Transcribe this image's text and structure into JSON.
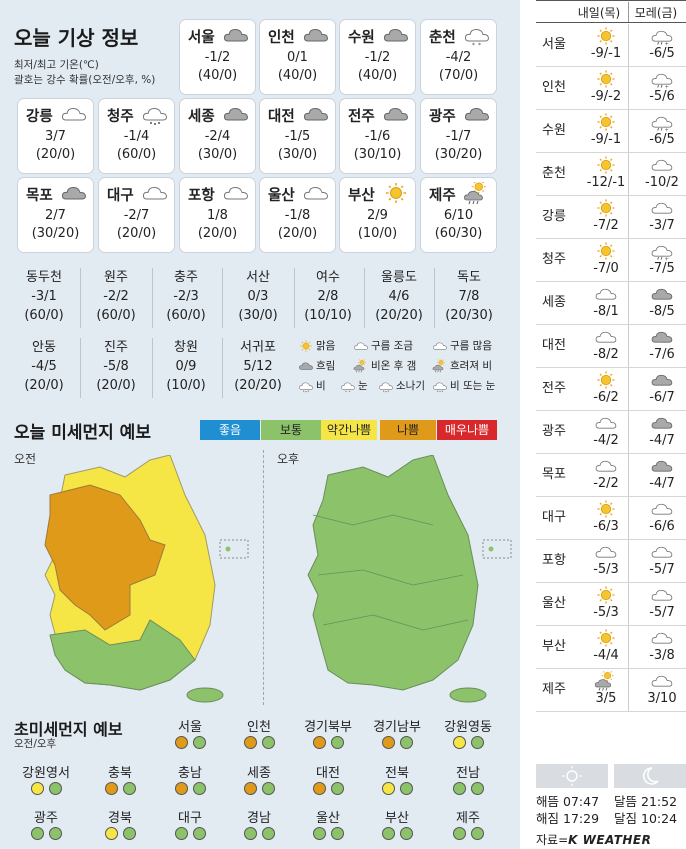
{
  "header": {
    "title": "오늘 기상 정보",
    "note1": "최저/최고 기온(℃)",
    "note2": "괄호는 강수 확률(오전/오후, %)"
  },
  "cards": [
    {
      "name": "서울",
      "temp": "-1/2",
      "prob": "(40/0)",
      "icon": "cloudy"
    },
    {
      "name": "인천",
      "temp": "0/1",
      "prob": "(40/0)",
      "icon": "cloudy"
    },
    {
      "name": "수원",
      "temp": "-1/2",
      "prob": "(40/0)",
      "icon": "cloudy"
    },
    {
      "name": "춘천",
      "temp": "-4/2",
      "prob": "(70/0)",
      "icon": "snow"
    },
    {
      "name": "강릉",
      "temp": "3/7",
      "prob": "(20/0)",
      "icon": "partly"
    },
    {
      "name": "청주",
      "temp": "-1/4",
      "prob": "(60/0)",
      "icon": "rain"
    },
    {
      "name": "세종",
      "temp": "-2/4",
      "prob": "(30/0)",
      "icon": "cloudy"
    },
    {
      "name": "대전",
      "temp": "-1/5",
      "prob": "(30/0)",
      "icon": "cloudy"
    },
    {
      "name": "전주",
      "temp": "-1/6",
      "prob": "(30/10)",
      "icon": "cloudy"
    },
    {
      "name": "광주",
      "temp": "-1/7",
      "prob": "(30/20)",
      "icon": "cloudy"
    },
    {
      "name": "목포",
      "temp": "2/7",
      "prob": "(30/20)",
      "icon": "cloudy"
    },
    {
      "name": "대구",
      "temp": "-2/7",
      "prob": "(20/0)",
      "icon": "partly"
    },
    {
      "name": "포항",
      "temp": "1/8",
      "prob": "(20/0)",
      "icon": "partly"
    },
    {
      "name": "울산",
      "temp": "-1/8",
      "prob": "(20/0)",
      "icon": "partly"
    },
    {
      "name": "부산",
      "temp": "2/9",
      "prob": "(10/0)",
      "icon": "sun"
    },
    {
      "name": "제주",
      "temp": "6/10",
      "prob": "(60/30)",
      "icon": "sunrain"
    }
  ],
  "small_cities": [
    {
      "name": "동두천",
      "temp": "-3/1",
      "prob": "(60/0)"
    },
    {
      "name": "원주",
      "temp": "-2/2",
      "prob": "(60/0)"
    },
    {
      "name": "충주",
      "temp": "-2/3",
      "prob": "(60/0)"
    },
    {
      "name": "서산",
      "temp": "0/3",
      "prob": "(30/0)"
    },
    {
      "name": "여수",
      "temp": "2/8",
      "prob": "(10/10)"
    },
    {
      "name": "울릉도",
      "temp": "4/6",
      "prob": "(20/20)"
    },
    {
      "name": "독도",
      "temp": "7/8",
      "prob": "(20/30)"
    },
    {
      "name": "안동",
      "temp": "-4/5",
      "prob": "(20/0)"
    },
    {
      "name": "진주",
      "temp": "-5/8",
      "prob": "(20/0)"
    },
    {
      "name": "창원",
      "temp": "0/9",
      "prob": "(10/0)"
    },
    {
      "name": "서귀포",
      "temp": "5/12",
      "prob": "(20/20)"
    }
  ],
  "legend": [
    {
      "label": "맑음",
      "icon": "sun"
    },
    {
      "label": "구름 조금",
      "icon": "partly"
    },
    {
      "label": "구름 많음",
      "icon": "partly"
    },
    {
      "label": "흐림",
      "icon": "cloudy"
    },
    {
      "label": "비온 후 갬",
      "icon": "sunrain"
    },
    {
      "label": "흐려져 비",
      "icon": "sunrain"
    },
    {
      "label": "비",
      "icon": "rain"
    },
    {
      "label": "눈",
      "icon": "snow"
    },
    {
      "label": "소나기",
      "icon": "rain"
    },
    {
      "label": "비 또는 눈",
      "icon": "rain"
    }
  ],
  "dust": {
    "title": "오늘 미세먼지 예보",
    "levels": [
      {
        "label": "좋음",
        "color": "#1f8fd1"
      },
      {
        "label": "보통",
        "color": "#8cc26a"
      },
      {
        "label": "약간나쁨",
        "color": "#f5e646"
      },
      {
        "label": "나쁨",
        "color": "#e09a1a"
      },
      {
        "label": "매우나쁨",
        "color": "#d8282b"
      }
    ],
    "am_label": "오전",
    "pm_label": "오후"
  },
  "pm25": {
    "title": "초미세먼지 예보",
    "subtitle": "오전/오후",
    "row1": [
      {
        "name": "서울",
        "am": "#e09a1a",
        "pm": "#8cc26a"
      },
      {
        "name": "인천",
        "am": "#e09a1a",
        "pm": "#8cc26a"
      },
      {
        "name": "경기북부",
        "am": "#e09a1a",
        "pm": "#8cc26a"
      },
      {
        "name": "경기남부",
        "am": "#e09a1a",
        "pm": "#8cc26a"
      },
      {
        "name": "강원영동",
        "am": "#f5e646",
        "pm": "#8cc26a"
      }
    ],
    "row2": [
      {
        "name": "강원영서",
        "am": "#f5e646",
        "pm": "#8cc26a"
      },
      {
        "name": "충북",
        "am": "#e09a1a",
        "pm": "#8cc26a"
      },
      {
        "name": "충남",
        "am": "#e09a1a",
        "pm": "#8cc26a"
      },
      {
        "name": "세종",
        "am": "#e09a1a",
        "pm": "#8cc26a"
      },
      {
        "name": "대전",
        "am": "#e09a1a",
        "pm": "#8cc26a"
      },
      {
        "name": "전북",
        "am": "#f5e646",
        "pm": "#8cc26a"
      },
      {
        "name": "전남",
        "am": "#8cc26a",
        "pm": "#8cc26a"
      }
    ],
    "row3": [
      {
        "name": "광주",
        "am": "#8cc26a",
        "pm": "#8cc26a"
      },
      {
        "name": "경북",
        "am": "#f5e646",
        "pm": "#8cc26a"
      },
      {
        "name": "대구",
        "am": "#8cc26a",
        "pm": "#8cc26a"
      },
      {
        "name": "경남",
        "am": "#8cc26a",
        "pm": "#8cc26a"
      },
      {
        "name": "울산",
        "am": "#8cc26a",
        "pm": "#8cc26a"
      },
      {
        "name": "부산",
        "am": "#8cc26a",
        "pm": "#8cc26a"
      },
      {
        "name": "제주",
        "am": "#8cc26a",
        "pm": "#8cc26a"
      }
    ]
  },
  "forecast": {
    "tomorrow": "내일(목)",
    "dayafter": "모레(금)",
    "rows": [
      {
        "name": "서울",
        "t1": "-9/-1",
        "i1": "sun",
        "t2": "-6/5",
        "i2": "snowrain"
      },
      {
        "name": "인천",
        "t1": "-9/-2",
        "i1": "sun",
        "t2": "-5/6",
        "i2": "snowrain"
      },
      {
        "name": "수원",
        "t1": "-9/-1",
        "i1": "sun",
        "t2": "-6/5",
        "i2": "snowrain"
      },
      {
        "name": "춘천",
        "t1": "-12/-1",
        "i1": "sun",
        "t2": "-10/2",
        "i2": "partly"
      },
      {
        "name": "강릉",
        "t1": "-7/2",
        "i1": "sun",
        "t2": "-3/7",
        "i2": "partly"
      },
      {
        "name": "청주",
        "t1": "-7/0",
        "i1": "sun",
        "t2": "-7/5",
        "i2": "snowrain"
      },
      {
        "name": "세종",
        "t1": "-8/1",
        "i1": "partly",
        "t2": "-8/5",
        "i2": "cloudy"
      },
      {
        "name": "대전",
        "t1": "-8/2",
        "i1": "partly",
        "t2": "-7/6",
        "i2": "cloudy"
      },
      {
        "name": "전주",
        "t1": "-6/2",
        "i1": "sun",
        "t2": "-6/7",
        "i2": "cloudy"
      },
      {
        "name": "광주",
        "t1": "-4/2",
        "i1": "partly",
        "t2": "-4/7",
        "i2": "cloudy"
      },
      {
        "name": "목포",
        "t1": "-2/2",
        "i1": "partly",
        "t2": "-4/7",
        "i2": "cloudy"
      },
      {
        "name": "대구",
        "t1": "-6/3",
        "i1": "sun",
        "t2": "-6/6",
        "i2": "partly"
      },
      {
        "name": "포항",
        "t1": "-5/3",
        "i1": "partly",
        "t2": "-5/7",
        "i2": "partly"
      },
      {
        "name": "울산",
        "t1": "-5/3",
        "i1": "sun",
        "t2": "-5/7",
        "i2": "partly"
      },
      {
        "name": "부산",
        "t1": "-4/4",
        "i1": "sun",
        "t2": "-3/8",
        "i2": "partly"
      },
      {
        "name": "제주",
        "t1": "3/5",
        "i1": "sunrain",
        "t2": "3/10",
        "i2": "partly"
      }
    ]
  },
  "sun": {
    "rise_label": "해뜸",
    "rise": "07:47",
    "set_label": "해짐",
    "set": "17:29"
  },
  "moon": {
    "rise_label": "달뜸",
    "rise": "21:52",
    "set_label": "달짐",
    "set": "10:24"
  },
  "source": {
    "prefix": "자료=",
    "brand": "K WEATHER"
  }
}
